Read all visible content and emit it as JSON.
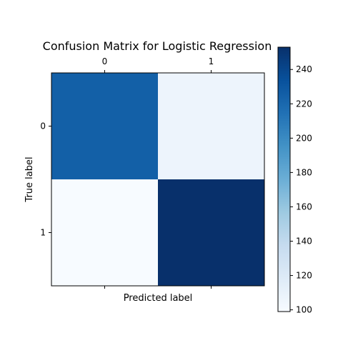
{
  "chart_data": {
    "type": "heatmap",
    "title": "Confusion Matrix for Logistic Regression",
    "xlabel": "Predicted label",
    "ylabel": "True label",
    "x_categories": [
      "0",
      "1"
    ],
    "y_categories": [
      "0",
      "1"
    ],
    "values": [
      [
        225,
        107
      ],
      [
        99,
        253
      ]
    ],
    "colormap": "Blues",
    "color_range": [
      99,
      253
    ],
    "colorbar_ticks": [
      100,
      120,
      140,
      160,
      180,
      200,
      220,
      240
    ],
    "x_tick_position": "top",
    "grid": false
  }
}
